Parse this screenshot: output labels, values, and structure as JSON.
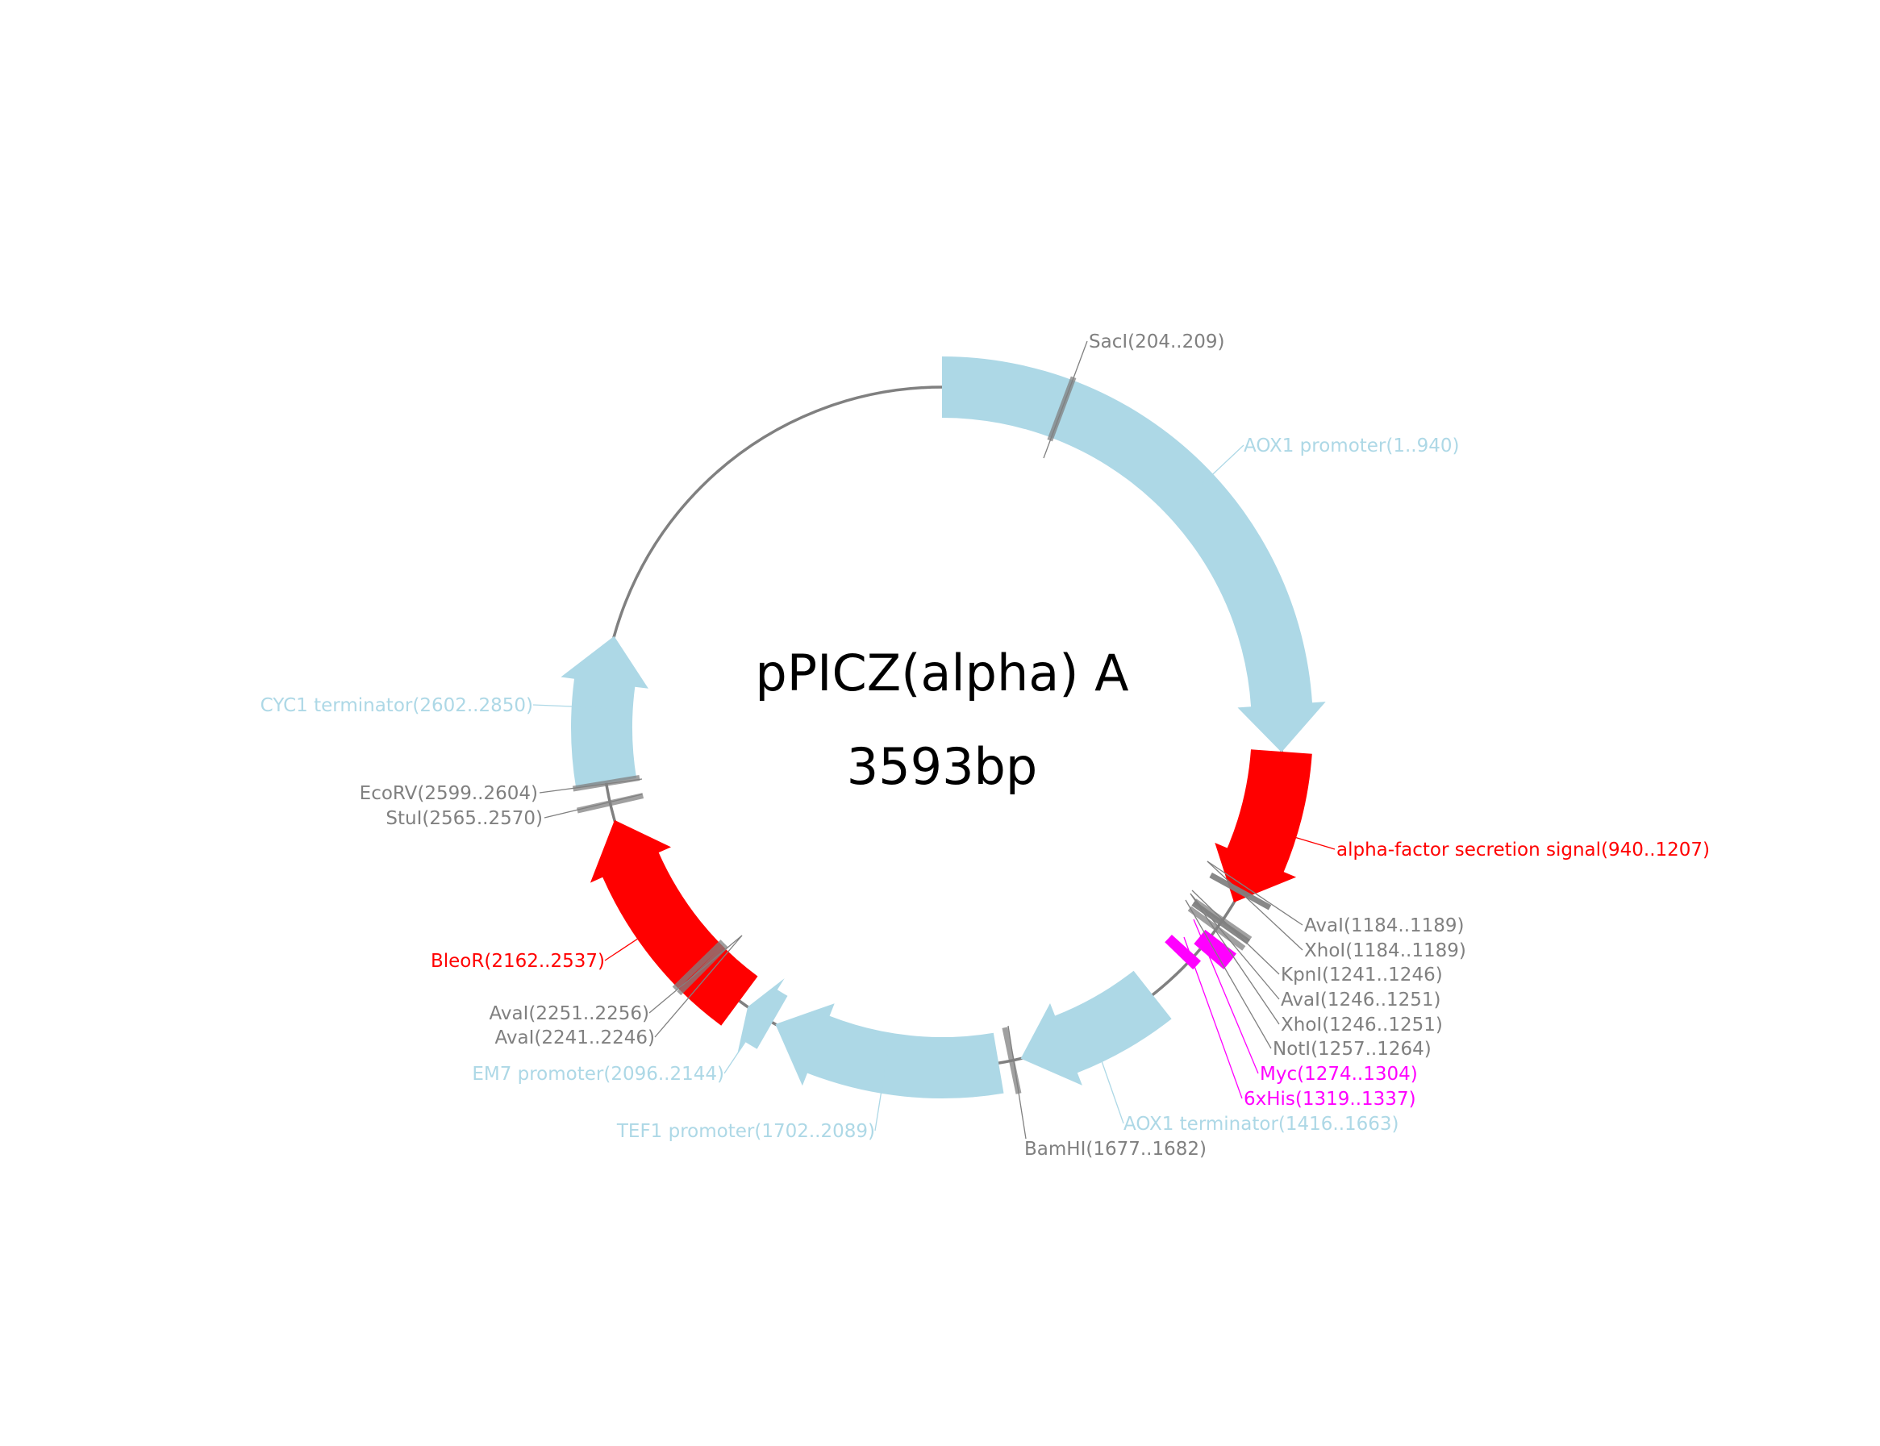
{
  "plasmid": {
    "name": "pPICZ(alpha) A",
    "size_label": "3593bp",
    "length_bp": 3593
  },
  "colors": {
    "backbone": "#808080",
    "promoter": "#add8e6",
    "cds": "#ff0000",
    "tag": "#ff00ff",
    "site": "#808080"
  },
  "features": [
    {
      "id": "aox1-promoter",
      "label": "AOX1 promoter(1..940)",
      "start": 1,
      "end": 940,
      "strand": 1,
      "kind": "promoter"
    },
    {
      "id": "alpha-factor",
      "label": "alpha-factor secretion signal(940..1207)",
      "start": 940,
      "end": 1207,
      "strand": 1,
      "kind": "cds"
    },
    {
      "id": "myc",
      "label": "Myc(1274..1304)",
      "start": 1274,
      "end": 1304,
      "strand": 0,
      "kind": "tag"
    },
    {
      "id": "6xhis",
      "label": "6xHis(1319..1337)",
      "start": 1319,
      "end": 1337,
      "strand": 0,
      "kind": "tag"
    },
    {
      "id": "aox1-terminator",
      "label": "AOX1 terminator(1416..1663)",
      "start": 1416,
      "end": 1663,
      "strand": 1,
      "kind": "promoter"
    },
    {
      "id": "tef1-promoter",
      "label": "TEF1 promoter(1702..2089)",
      "start": 1702,
      "end": 2089,
      "strand": 1,
      "kind": "promoter"
    },
    {
      "id": "em7-promoter",
      "label": "EM7 promoter(2096..2144)",
      "start": 2096,
      "end": 2144,
      "strand": 1,
      "kind": "promoter"
    },
    {
      "id": "bleor",
      "label": "BleoR(2162..2537)",
      "start": 2162,
      "end": 2537,
      "strand": 1,
      "kind": "cds"
    },
    {
      "id": "cyc1-terminator",
      "label": "CYC1 terminator(2602..2850)",
      "start": 2602,
      "end": 2850,
      "strand": 1,
      "kind": "promoter"
    }
  ],
  "sites": [
    {
      "id": "saci",
      "label": "SacI(204..209)",
      "start": 204,
      "end": 209
    },
    {
      "id": "aval-1184",
      "label": "AvaI(1184..1189)",
      "start": 1184,
      "end": 1189
    },
    {
      "id": "xhoi-1184",
      "label": "XhoI(1184..1189)",
      "start": 1184,
      "end": 1189
    },
    {
      "id": "kpni",
      "label": "KpnI(1241..1246)",
      "start": 1241,
      "end": 1246
    },
    {
      "id": "aval-1246",
      "label": "AvaI(1246..1251)",
      "start": 1246,
      "end": 1251
    },
    {
      "id": "xhoi-1246",
      "label": "XhoI(1246..1251)",
      "start": 1246,
      "end": 1251
    },
    {
      "id": "noti",
      "label": "NotI(1257..1264)",
      "start": 1257,
      "end": 1264
    },
    {
      "id": "bamhi",
      "label": "BamHI(1677..1682)",
      "start": 1677,
      "end": 1682
    },
    {
      "id": "aval-2241",
      "label": "AvaI(2241..2246)",
      "start": 2241,
      "end": 2246
    },
    {
      "id": "aval-2251",
      "label": "AvaI(2251..2256)",
      "start": 2251,
      "end": 2256
    },
    {
      "id": "stui",
      "label": "StuI(2565..2570)",
      "start": 2565,
      "end": 2570
    },
    {
      "id": "ecorv",
      "label": "EcoRV(2599..2604)",
      "start": 2599,
      "end": 2604
    }
  ]
}
